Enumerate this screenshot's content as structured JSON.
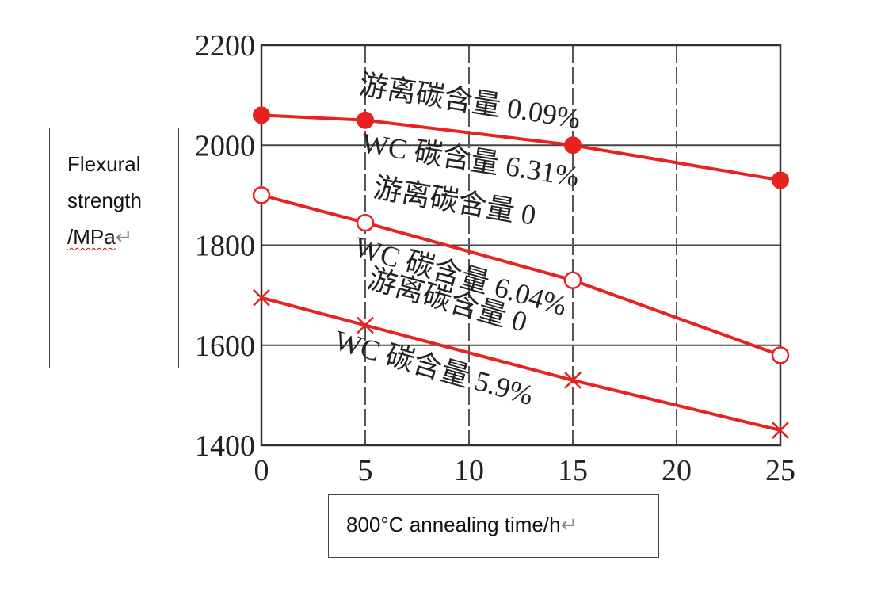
{
  "chart_data": {
    "type": "line",
    "x": [
      0,
      5,
      15,
      25
    ],
    "xlim": [
      0,
      25
    ],
    "ylim": [
      1400,
      2200
    ],
    "x_ticks": [
      "0",
      "5",
      "10",
      "15",
      "20",
      "25"
    ],
    "y_ticks": [
      "2200",
      "2000",
      "1800",
      "1600",
      "1400"
    ],
    "grid": true,
    "xlabel": "800°C annealing time/h",
    "ylabel_lines": [
      "Flexural",
      "strength",
      "/MPa"
    ],
    "series": [
      {
        "values": [
          2060,
          2050,
          2000,
          1930
        ],
        "marker": "filled-circle",
        "color": "#e8231f"
      },
      {
        "values": [
          1900,
          1845,
          1730,
          1580
        ],
        "marker": "open-circle",
        "color": "#e8231f"
      },
      {
        "values": [
          1695,
          1640,
          1530,
          1430
        ],
        "marker": "cross",
        "color": "#e8231f"
      }
    ],
    "annotations": [
      {
        "id": "a1",
        "text": "游离碳含量 0.09%"
      },
      {
        "id": "a2",
        "text": "WC 碳含量 6.31%"
      },
      {
        "id": "a3",
        "text": "游离碳含量 0"
      },
      {
        "id": "a4",
        "text": "WC 碳含量 6.04%"
      },
      {
        "id": "a5",
        "text": "游离碳含量 0"
      },
      {
        "id": "a6",
        "text": "WC 碳含量 5.9%"
      }
    ]
  }
}
